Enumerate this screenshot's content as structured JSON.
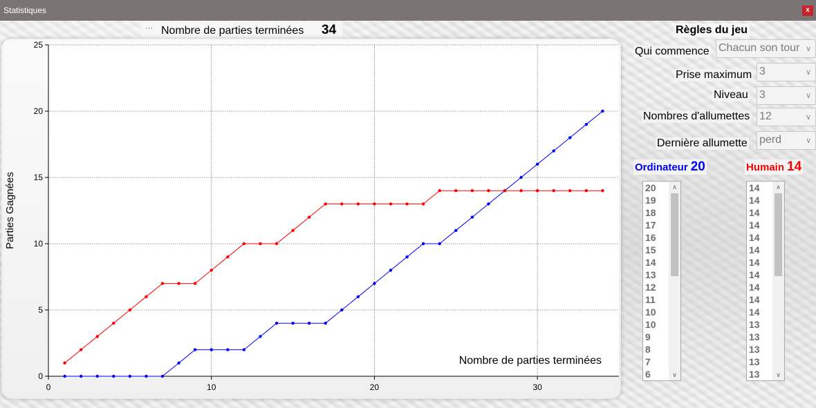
{
  "window": {
    "title": "Statistiques",
    "close_label": "x"
  },
  "header": {
    "legend_dots": "···",
    "label": "Nombre de parties terminées",
    "count": "34"
  },
  "rules": {
    "title": "Règles du jeu",
    "fields": [
      {
        "label": "Qui commence",
        "value": "Chacun son tour"
      },
      {
        "label": "Prise maximum",
        "value": "3"
      },
      {
        "label": "Niveau",
        "value": "3"
      },
      {
        "label": "Nombres d'allumettes",
        "value": "12"
      },
      {
        "label": "Dernière allumette",
        "value": "perd"
      }
    ]
  },
  "players": {
    "computer": {
      "label": "Ordinateur",
      "score": "20",
      "color": "#0000ff",
      "list": [
        "20",
        "19",
        "18",
        "17",
        "16",
        "15",
        "14",
        "13",
        "12",
        "11",
        "10",
        "10",
        "9",
        "8",
        "7",
        "6"
      ]
    },
    "human": {
      "label": "Humain",
      "score": "14",
      "color": "#ff0000",
      "list": [
        "14",
        "14",
        "14",
        "14",
        "14",
        "14",
        "14",
        "14",
        "14",
        "14",
        "14",
        "13",
        "13",
        "13",
        "13",
        "13"
      ]
    }
  },
  "icons": {
    "dropdown": "chevron-down-icon",
    "scroll_up": "scroll-up-icon",
    "scroll_down": "scroll-down-icon"
  },
  "chart_data": {
    "type": "line",
    "title": "",
    "xlabel": "Nombre de parties terminées",
    "ylabel": "Parties Gagnées",
    "xlim": [
      0,
      35
    ],
    "ylim": [
      0,
      25
    ],
    "xticks": [
      0,
      10,
      20,
      30
    ],
    "yticks": [
      0,
      5,
      10,
      15,
      20,
      25
    ],
    "grid": true,
    "x": [
      1,
      2,
      3,
      4,
      5,
      6,
      7,
      8,
      9,
      10,
      11,
      12,
      13,
      14,
      15,
      16,
      17,
      18,
      19,
      20,
      21,
      22,
      23,
      24,
      25,
      26,
      27,
      28,
      29,
      30,
      31,
      32,
      33,
      34
    ],
    "series": [
      {
        "name": "Ordinateur",
        "color": "#0000ff",
        "values": [
          0,
          0,
          0,
          0,
          0,
          0,
          0,
          1,
          2,
          2,
          2,
          2,
          3,
          4,
          4,
          4,
          4,
          5,
          6,
          7,
          8,
          9,
          10,
          10,
          11,
          12,
          13,
          14,
          15,
          16,
          17,
          18,
          19,
          20
        ]
      },
      {
        "name": "Humain",
        "color": "#ff0000",
        "values": [
          1,
          2,
          3,
          4,
          5,
          6,
          7,
          7,
          7,
          8,
          9,
          10,
          10,
          10,
          11,
          12,
          13,
          13,
          13,
          13,
          13,
          13,
          13,
          14,
          14,
          14,
          14,
          14,
          14,
          14,
          14,
          14,
          14,
          14
        ]
      }
    ]
  }
}
